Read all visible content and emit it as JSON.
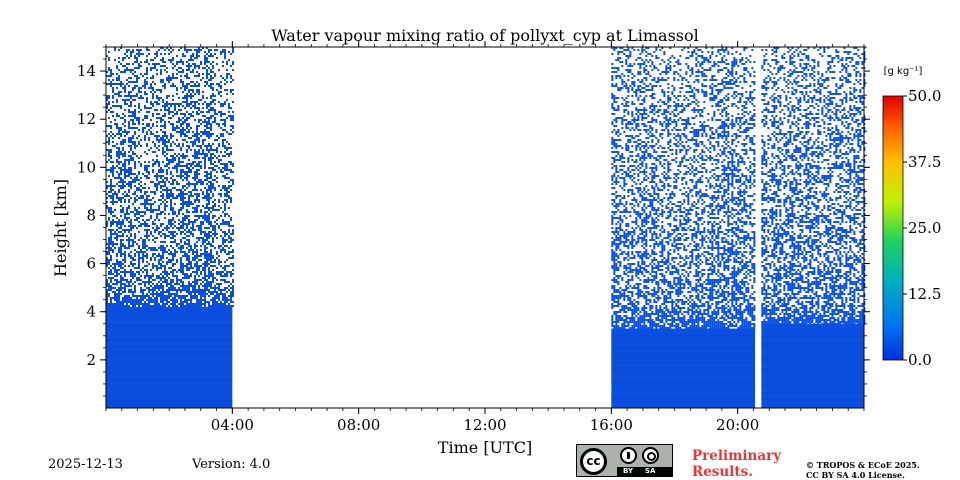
{
  "chart_data": {
    "type": "heatmap",
    "title": "Water vapour mixing ratio of pollyxt_cyp at Limassol",
    "xlabel": "Time [UTC]",
    "ylabel": "Height [km]",
    "xlim": [
      0,
      24
    ],
    "ylim": [
      0,
      15
    ],
    "x_ticks": [
      {
        "value": 4,
        "label": "04:00"
      },
      {
        "value": 8,
        "label": "08:00"
      },
      {
        "value": 12,
        "label": "12:00"
      },
      {
        "value": 16,
        "label": "16:00"
      },
      {
        "value": 20,
        "label": "20:00"
      }
    ],
    "y_ticks": [
      {
        "value": 2,
        "label": "2"
      },
      {
        "value": 4,
        "label": "4"
      },
      {
        "value": 6,
        "label": "6"
      },
      {
        "value": 8,
        "label": "8"
      },
      {
        "value": 10,
        "label": "10"
      },
      {
        "value": 12,
        "label": "12"
      },
      {
        "value": 14,
        "label": "14"
      }
    ],
    "colorbar": {
      "label": "[g kg⁻¹]",
      "range": [
        0.0,
        50.0
      ],
      "ticks": [
        "0.0",
        "12.5",
        "25.0",
        "37.5",
        "50.0"
      ],
      "colormap": "jet"
    },
    "data_segments": [
      {
        "t_start": 0.0,
        "t_end": 4.0,
        "boundary_layer_top_km": 4.2,
        "noise_layer_top_km": 5.5,
        "sparse_top_km": 15.0
      },
      {
        "t_start": 16.0,
        "t_end": 20.55,
        "boundary_layer_top_km": 3.3,
        "noise_layer_top_km": 4.5,
        "sparse_top_km": 15.0
      },
      {
        "t_start": 20.75,
        "t_end": 24.0,
        "boundary_layer_top_km": 3.5,
        "noise_layer_top_km": 4.5,
        "sparse_top_km": 15.0
      }
    ],
    "typical_value_g_kg": 2.0
  },
  "footer": {
    "date": "2025-12-13",
    "version": "Version: 4.0",
    "preliminary": [
      "Preliminary",
      "Results."
    ],
    "copyright": [
      "© TROPOS & ECoE 2025.",
      "CC BY SA 4.0 License."
    ],
    "license_badge": {
      "cc": "cc",
      "by": "BY",
      "sa": "SA"
    }
  },
  "colors": {
    "data_blue": "#0b4fe0",
    "axis": "#000000"
  }
}
